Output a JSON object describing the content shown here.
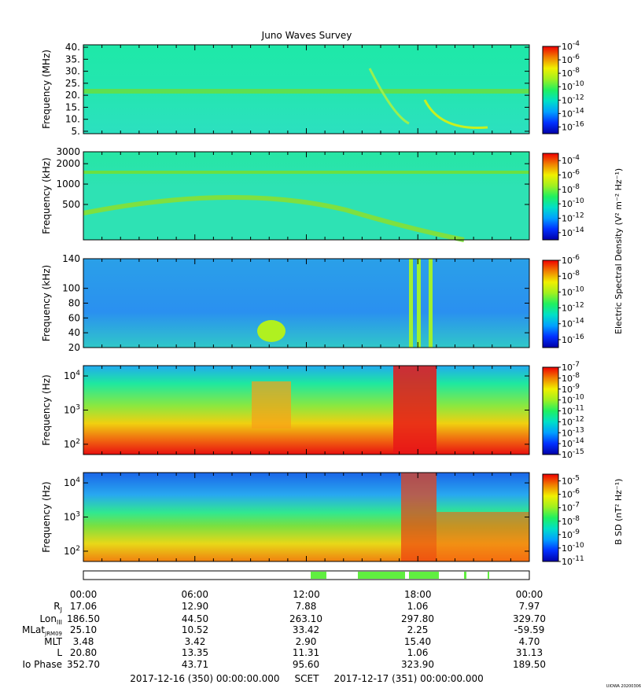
{
  "chart_data": {
    "type": "heatmap",
    "title": "Juno Waves Survey",
    "x_ticks": [
      "00:00",
      "06:00",
      "12:00",
      "18:00",
      "00:00"
    ],
    "panels": [
      {
        "name": "electric-high",
        "ylabel": "Frequency (MHz)",
        "yticks": [
          "40.",
          "35.",
          "30.",
          "25.",
          "20.",
          "15.",
          "10.",
          "5."
        ],
        "ylim": [
          4,
          41
        ],
        "colorbar_ticks": [
          "-4",
          "-6",
          "-8",
          "-10",
          "-12",
          "-14",
          "-16"
        ],
        "colorbar_range": [
          -17,
          -4
        ]
      },
      {
        "name": "electric-mid",
        "ylabel": "Frequency (kHz)",
        "yticks": [
          "3000",
          "2000",
          "1000",
          "500"
        ],
        "ylim": [
          150,
          3000
        ],
        "colorbar_ticks": [
          "-4",
          "-6",
          "-8",
          "-10",
          "-12",
          "-14"
        ],
        "colorbar_range": [
          -15,
          -3
        ]
      },
      {
        "name": "electric-low",
        "ylabel": "Frequency (kHz)",
        "yticks": [
          "140",
          "100",
          "80",
          "60",
          "40",
          "20"
        ],
        "ylim": [
          20,
          140
        ],
        "colorbar_ticks": [
          "-6",
          "-8",
          "-10",
          "-12",
          "-14",
          "-16"
        ],
        "colorbar_range": [
          -17,
          -6
        ]
      },
      {
        "name": "electric-hz",
        "ylabel": "Frequency (Hz)",
        "yticks": [
          "4",
          "3",
          "2"
        ],
        "ylim": [
          50,
          20000
        ],
        "colorbar_ticks": [
          "-7",
          "-8",
          "-9",
          "-10",
          "-11",
          "-12",
          "-13",
          "-14",
          "-15"
        ],
        "colorbar_range": [
          -15,
          -7
        ]
      },
      {
        "name": "magnetic-hz",
        "ylabel": "Frequency (Hz)",
        "yticks": [
          "4",
          "3",
          "2"
        ],
        "ylim": [
          50,
          20000
        ],
        "colorbar_ticks": [
          "-5",
          "-6",
          "-7",
          "-8",
          "-9",
          "-10",
          "-11"
        ],
        "colorbar_range": [
          -11,
          -4.5
        ]
      }
    ],
    "electric_colorbar_label": "Electric Spectral Density (V² m⁻² Hz⁻¹)",
    "magnetic_colorbar_label": "B SD (nT² Hz⁻¹)",
    "ephemeris": {
      "labels": [
        "Rj",
        "LonIII",
        "MLatJRM09",
        "MLT",
        "L",
        "Io Phase"
      ],
      "rows": [
        [
          "17.06",
          "12.90",
          "7.88",
          "1.06",
          "7.97"
        ],
        [
          "186.50",
          "44.50",
          "263.10",
          "297.80",
          "329.70"
        ],
        [
          "25.10",
          "10.52",
          "33.42",
          "2.25",
          "-59.59"
        ],
        [
          "3.48",
          "3.42",
          "2.90",
          "15.40",
          "4.70"
        ],
        [
          "20.80",
          "13.35",
          "11.31",
          "1.06",
          "31.13"
        ],
        [
          "352.70",
          "43.71",
          "95.60",
          "323.90",
          "189.50"
        ]
      ]
    },
    "bottom_text": "2017-12-16 (350) 00:00:00.000     SCET     2017-12-17 (351) 00:00:00.000",
    "footer_tag": "UIOWA 20200306"
  }
}
